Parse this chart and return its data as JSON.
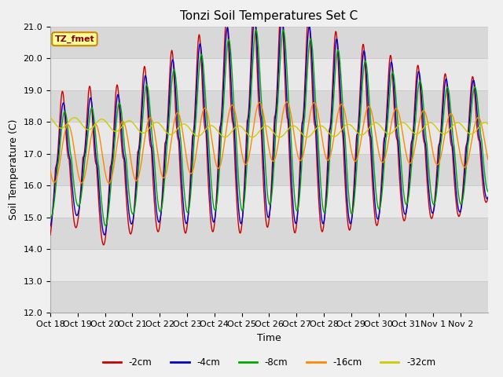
{
  "title": "Tonzi Soil Temperatures Set C",
  "xlabel": "Time",
  "ylabel": "Soil Temperature (C)",
  "ylim": [
    12.0,
    21.0
  ],
  "yticks": [
    12.0,
    13.0,
    14.0,
    15.0,
    16.0,
    17.0,
    18.0,
    19.0,
    20.0,
    21.0
  ],
  "xtick_labels": [
    "Oct 18",
    "Oct 19",
    "Oct 20",
    "Oct 21",
    "Oct 22",
    "Oct 23",
    "Oct 24",
    "Oct 25",
    "Oct 26",
    "Oct 27",
    "Oct 28",
    "Oct 29",
    "Oct 30",
    "Oct 31",
    "Nov 1",
    "Nov 2"
  ],
  "series_colors": [
    "#cc0000",
    "#0000cc",
    "#00aa00",
    "#ff8800",
    "#cccc00"
  ],
  "series_labels": [
    "-2cm",
    "-4cm",
    "-8cm",
    "-16cm",
    "-32cm"
  ],
  "legend_label": "TZ_fmet",
  "legend_bg": "#ffff99",
  "legend_border": "#cc6600",
  "fig_bg": "#f0f0f0",
  "plot_bg": "#e8e8e8",
  "band_color": "#d8d8d8",
  "title_fontsize": 11,
  "axis_fontsize": 9,
  "tick_fontsize": 8
}
